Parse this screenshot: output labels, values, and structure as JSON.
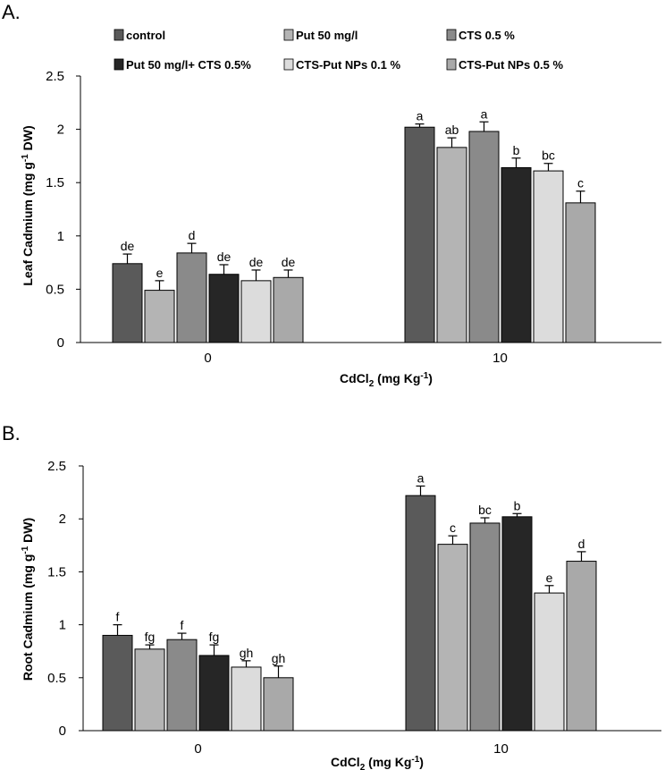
{
  "legend": {
    "series": [
      {
        "name": "control",
        "color": "#5a5a5a"
      },
      {
        "name": "Put 50 mg/l",
        "color": "#b4b4b4"
      },
      {
        "name": "CTS 0.5 %",
        "color": "#8a8a8a"
      },
      {
        "name": "Put 50 mg/l+ CTS 0.5%",
        "color": "#262626"
      },
      {
        "name": "CTS-Put NPs 0.1 %",
        "color": "#dcdcdc"
      },
      {
        "name": "CTS-Put NPs 0.5 %",
        "color": "#a9a9a9"
      }
    ]
  },
  "chart_data": [
    {
      "panel": "A.",
      "type": "bar",
      "categories": [
        "0",
        "10"
      ],
      "xlabel_main": "CdCl",
      "xlabel_sub": "2",
      "xlabel_rest": " (mg Kg",
      "xlabel_sup": "-1",
      "xlabel_end": ")",
      "ylabel_main": "Leaf Cadmium (mg g",
      "ylabel_sup": "-1",
      "ylabel_end": " DW)",
      "ylim": [
        0,
        2.5
      ],
      "yticks": [
        "0",
        "0.5",
        "1",
        "1.5",
        "2",
        "2.5"
      ],
      "series": [
        {
          "name": "control",
          "values": [
            0.74,
            2.02
          ],
          "errors": [
            0.09,
            0.03
          ],
          "letters": [
            "de",
            "a"
          ]
        },
        {
          "name": "Put 50 mg/l",
          "values": [
            0.49,
            1.83
          ],
          "errors": [
            0.09,
            0.09
          ],
          "letters": [
            "e",
            "ab"
          ]
        },
        {
          "name": "CTS 0.5 %",
          "values": [
            0.84,
            1.98
          ],
          "errors": [
            0.09,
            0.09
          ],
          "letters": [
            "d",
            "a"
          ]
        },
        {
          "name": "Put 50 mg/l+ CTS 0.5%",
          "values": [
            0.64,
            1.64
          ],
          "errors": [
            0.09,
            0.09
          ],
          "letters": [
            "de",
            "b"
          ]
        },
        {
          "name": "CTS-Put NPs 0.1 %",
          "values": [
            0.58,
            1.61
          ],
          "errors": [
            0.1,
            0.07
          ],
          "letters": [
            "de",
            "bc"
          ]
        },
        {
          "name": "CTS-Put NPs 0.5 %",
          "values": [
            0.61,
            1.31
          ],
          "errors": [
            0.07,
            0.11
          ],
          "letters": [
            "de",
            "c"
          ]
        }
      ]
    },
    {
      "panel": "B.",
      "type": "bar",
      "categories": [
        "0",
        "10"
      ],
      "xlabel_main": "CdCl",
      "xlabel_sub": "2",
      "xlabel_rest": " (mg Kg",
      "xlabel_sup": "-1",
      "xlabel_end": ")",
      "ylabel_main": "Root Cadmium (mg g",
      "ylabel_sup": "-1",
      "ylabel_end": " DW)",
      "ylim": [
        0,
        2.5
      ],
      "yticks": [
        "0",
        "0.5",
        "1",
        "1.5",
        "2",
        "2.5"
      ],
      "series": [
        {
          "name": "control",
          "values": [
            0.9,
            2.22
          ],
          "errors": [
            0.1,
            0.09
          ],
          "letters": [
            "f",
            "a"
          ]
        },
        {
          "name": "Put 50 mg/l",
          "values": [
            0.77,
            1.76
          ],
          "errors": [
            0.04,
            0.08
          ],
          "letters": [
            "fg",
            "c"
          ]
        },
        {
          "name": "CTS 0.5 %",
          "values": [
            0.86,
            1.96
          ],
          "errors": [
            0.06,
            0.05
          ],
          "letters": [
            "f",
            "bc"
          ]
        },
        {
          "name": "Put 50 mg/l+ CTS 0.5%",
          "values": [
            0.71,
            2.02
          ],
          "errors": [
            0.1,
            0.03
          ],
          "letters": [
            "fg",
            "b"
          ]
        },
        {
          "name": "CTS-Put NPs 0.1 %",
          "values": [
            0.6,
            1.3
          ],
          "errors": [
            0.06,
            0.07
          ],
          "letters": [
            "gh",
            "e"
          ]
        },
        {
          "name": "CTS-Put NPs 0.5 %",
          "values": [
            0.5,
            1.6
          ],
          "errors": [
            0.11,
            0.09
          ],
          "letters": [
            "gh",
            "d"
          ]
        }
      ]
    }
  ]
}
